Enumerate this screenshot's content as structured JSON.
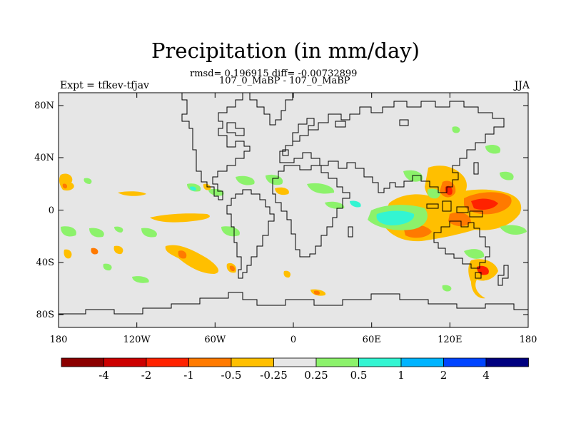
{
  "title": "Precipitation (in mm/day)",
  "stats_line": "rmsd= 0.196915 diff= -0.00732899",
  "case_line": "107_0_MaBP - 107_0_MaBP",
  "experiment": "Expt = tfkev-tfjav",
  "season": "JJA",
  "map": {
    "lon_ticks": [
      "180",
      "120W",
      "60W",
      "0",
      "60E",
      "120E",
      "180"
    ],
    "lat_ticks": [
      "80N",
      "40N",
      "0",
      "40S",
      "80S"
    ],
    "background_color": "#e6e6e6"
  },
  "colorbar": {
    "labels": [
      "-4",
      "-2",
      "-1",
      "-0.5",
      "-0.25",
      "0.25",
      "0.5",
      "1",
      "2",
      "4"
    ],
    "colors": [
      "#8b0000",
      "#cc0000",
      "#ff2200",
      "#ff7a00",
      "#ffbf00",
      "#e6e6e6",
      "#8cf26b",
      "#33f5d2",
      "#00b4ff",
      "#0044ff",
      "#00007f"
    ]
  }
}
